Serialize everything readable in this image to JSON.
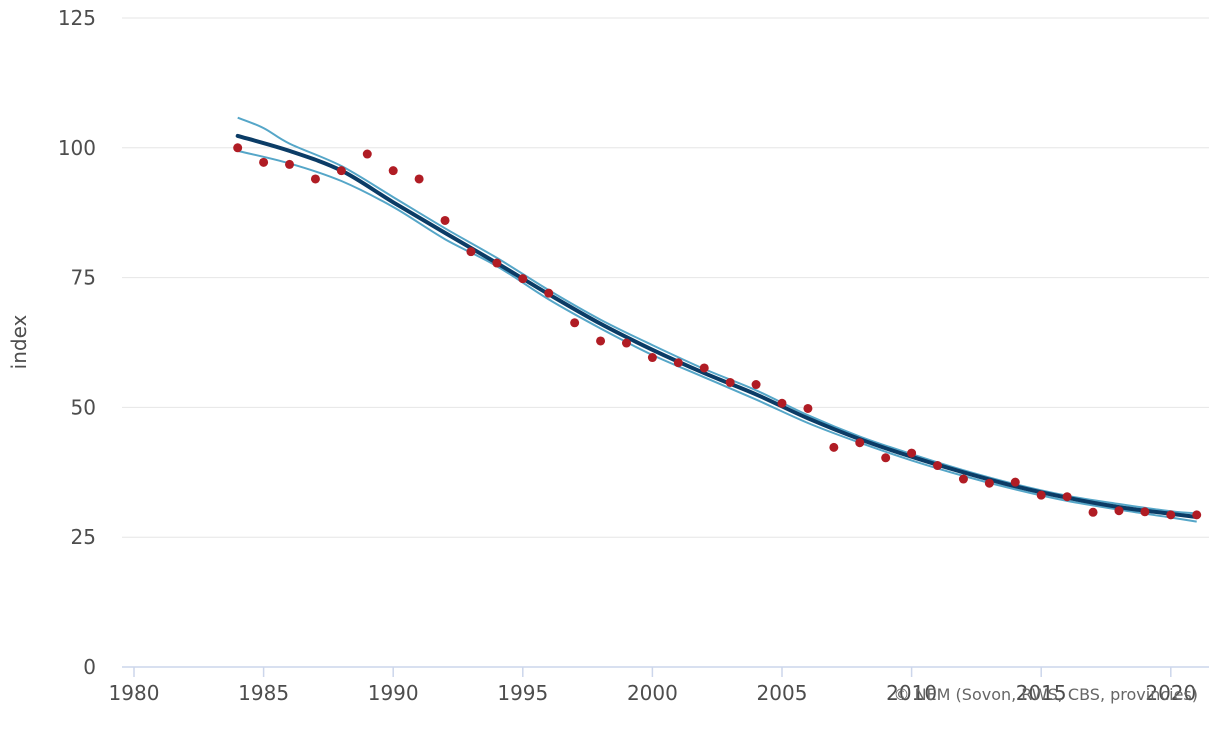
{
  "chart_data": {
    "type": "line",
    "ylabel": "index",
    "xlim": [
      1980,
      2021
    ],
    "ylim": [
      0,
      125
    ],
    "x_ticks": [
      1980,
      1985,
      1990,
      1995,
      2000,
      2005,
      2010,
      2015,
      2020
    ],
    "y_ticks": [
      0,
      25,
      50,
      75,
      100,
      125
    ],
    "grid": "horizontal",
    "credit": "© NEM (Sovon, RWS, CBS, provincies)",
    "colors": {
      "trend": "#0b3c66",
      "band": "#55a6c8",
      "points": "#b01c24",
      "grid": "#e6e6e6",
      "axis": "#ccd6eb"
    },
    "points": [
      [
        1984,
        100
      ],
      [
        1985,
        97.2
      ],
      [
        1986,
        96.8
      ],
      [
        1987,
        94
      ],
      [
        1988,
        95.6
      ],
      [
        1989,
        98.8
      ],
      [
        1990,
        95.6
      ],
      [
        1991,
        94
      ],
      [
        1992,
        86
      ],
      [
        1993,
        80
      ],
      [
        1994,
        77.8
      ],
      [
        1995,
        74.8
      ],
      [
        1996,
        72
      ],
      [
        1997,
        66.3
      ],
      [
        1998,
        62.8
      ],
      [
        1999,
        62.4
      ],
      [
        2000,
        59.6
      ],
      [
        2001,
        58.6
      ],
      [
        2002,
        57.6
      ],
      [
        2003,
        54.8
      ],
      [
        2004,
        54.4
      ],
      [
        2005,
        50.8
      ],
      [
        2006,
        49.8
      ],
      [
        2007,
        42.3
      ],
      [
        2008,
        43.2
      ],
      [
        2009,
        40.3
      ],
      [
        2010,
        41.2
      ],
      [
        2011,
        38.8
      ],
      [
        2012,
        36.2
      ],
      [
        2013,
        35.4
      ],
      [
        2014,
        35.6
      ],
      [
        2015,
        33.1
      ],
      [
        2016,
        32.8
      ],
      [
        2017,
        29.8
      ],
      [
        2018,
        30.1
      ],
      [
        2019,
        29.9
      ],
      [
        2020,
        29.3
      ],
      [
        2021,
        29.3
      ]
    ],
    "trend": [
      [
        1984,
        102.3
      ],
      [
        1986,
        99.4
      ],
      [
        1988,
        95.6
      ],
      [
        1990,
        89.5
      ],
      [
        1992,
        83.6
      ],
      [
        1994,
        77.8
      ],
      [
        1996,
        71.8
      ],
      [
        1998,
        66.1
      ],
      [
        2000,
        61.1
      ],
      [
        2002,
        56.6
      ],
      [
        2004,
        52.5
      ],
      [
        2006,
        47.9
      ],
      [
        2008,
        43.9
      ],
      [
        2010,
        40.5
      ],
      [
        2012,
        37.5
      ],
      [
        2014,
        34.8
      ],
      [
        2016,
        32.6
      ],
      [
        2018,
        30.8
      ],
      [
        2020,
        29.5
      ],
      [
        2021,
        28.9
      ]
    ],
    "band_upper": [
      [
        1984,
        105.8
      ],
      [
        1985,
        103.8
      ],
      [
        1986,
        100.8
      ],
      [
        1988,
        96.5
      ],
      [
        1990,
        90.5
      ],
      [
        1992,
        84.5
      ],
      [
        1994,
        78.8
      ],
      [
        1996,
        72.6
      ],
      [
        1998,
        66.9
      ],
      [
        2000,
        62
      ],
      [
        2002,
        57.4
      ],
      [
        2004,
        53.3
      ],
      [
        2006,
        48.5
      ],
      [
        2008,
        44.4
      ],
      [
        2010,
        41
      ],
      [
        2012,
        37.9
      ],
      [
        2014,
        35.2
      ],
      [
        2016,
        33
      ],
      [
        2018,
        31.4
      ],
      [
        2020,
        30
      ],
      [
        2021,
        29.6
      ]
    ],
    "band_lower": [
      [
        1984,
        99.4
      ],
      [
        1986,
        97
      ],
      [
        1988,
        93.6
      ],
      [
        1990,
        88.6
      ],
      [
        1992,
        82.4
      ],
      [
        1994,
        77.2
      ],
      [
        1996,
        70.8
      ],
      [
        1998,
        65.2
      ],
      [
        2000,
        60.1
      ],
      [
        2002,
        55.8
      ],
      [
        2004,
        51.5
      ],
      [
        2006,
        47
      ],
      [
        2008,
        43.2
      ],
      [
        2010,
        39.8
      ],
      [
        2012,
        36.8
      ],
      [
        2014,
        34.2
      ],
      [
        2016,
        32
      ],
      [
        2018,
        30.3
      ],
      [
        2020,
        28.8
      ],
      [
        2021,
        28
      ]
    ]
  }
}
